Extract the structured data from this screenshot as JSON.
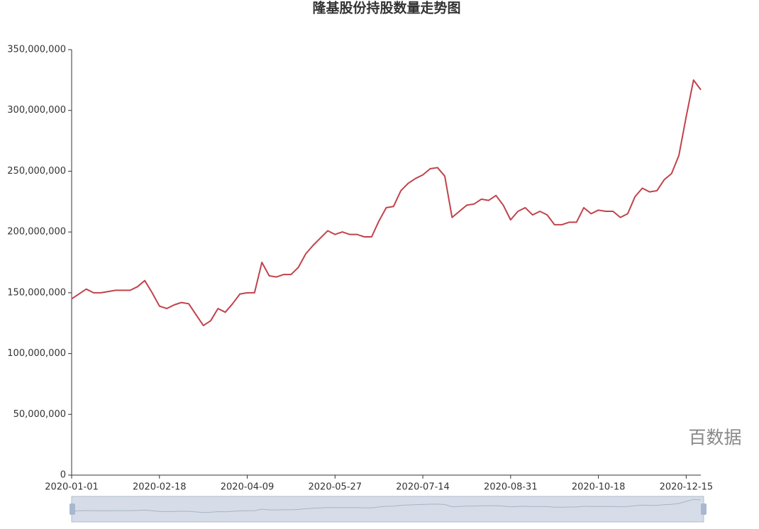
{
  "chart_data": {
    "type": "line",
    "title": "隆基股份持股数量走势图",
    "watermark": "百数据",
    "categories": [
      "2020-01-01",
      null,
      null,
      null,
      null,
      null,
      null,
      null,
      null,
      null,
      null,
      null,
      "2020-02-18",
      null,
      null,
      null,
      null,
      null,
      null,
      null,
      null,
      null,
      null,
      null,
      "2020-04-09",
      null,
      null,
      null,
      null,
      null,
      null,
      null,
      null,
      null,
      null,
      null,
      "2020-05-27",
      null,
      null,
      null,
      null,
      null,
      null,
      null,
      null,
      null,
      null,
      null,
      "2020-07-14",
      null,
      null,
      null,
      null,
      null,
      null,
      null,
      null,
      null,
      null,
      null,
      "2020-08-31",
      null,
      null,
      null,
      null,
      null,
      null,
      null,
      null,
      null,
      null,
      null,
      "2020-10-18",
      null,
      null,
      null,
      null,
      null,
      null,
      null,
      null,
      null,
      null,
      null,
      "2020-12-15",
      null,
      null
    ],
    "series": [
      {
        "color": "#c0434b",
        "values": [
          145000000,
          149000000,
          153000000,
          150000000,
          150000000,
          151000000,
          152000000,
          152000000,
          152000000,
          155000000,
          160000000,
          150000000,
          139000000,
          137000000,
          140000000,
          142000000,
          141000000,
          132000000,
          123000000,
          127000000,
          137000000,
          134000000,
          141000000,
          149000000,
          150000000,
          150000000,
          175000000,
          164000000,
          163000000,
          165000000,
          165000000,
          171000000,
          182000000,
          189000000,
          195000000,
          201000000,
          198000000,
          200000000,
          198000000,
          198000000,
          196000000,
          196000000,
          209000000,
          220000000,
          221000000,
          234000000,
          240000000,
          244000000,
          247000000,
          252000000,
          253000000,
          246000000,
          212000000,
          217000000,
          222000000,
          223000000,
          227000000,
          226000000,
          230000000,
          222000000,
          210000000,
          217000000,
          220000000,
          214000000,
          217000000,
          214000000,
          206000000,
          206000000,
          208000000,
          208000000,
          220000000,
          215000000,
          218000000,
          217000000,
          217000000,
          212000000,
          215000000,
          229000000,
          236000000,
          233000000,
          234000000,
          243000000,
          248000000,
          263000000,
          295000000,
          325000000,
          317000000
        ]
      }
    ],
    "ylim": [
      0,
      350000000
    ],
    "yticks": [
      0,
      {
        "value": 50000000,
        "label": "50,000,000"
      },
      {
        "value": 100000000,
        "label": "100,000,000"
      },
      {
        "value": 150000000,
        "label": "150,000,000"
      },
      {
        "value": 200000000,
        "label": "200,000,000"
      },
      {
        "value": 250000000,
        "label": "250,000,000"
      },
      {
        "value": 300000000,
        "label": "300,000,000"
      },
      {
        "value": 350000000,
        "label": "350,000,000"
      }
    ],
    "grid": false
  }
}
